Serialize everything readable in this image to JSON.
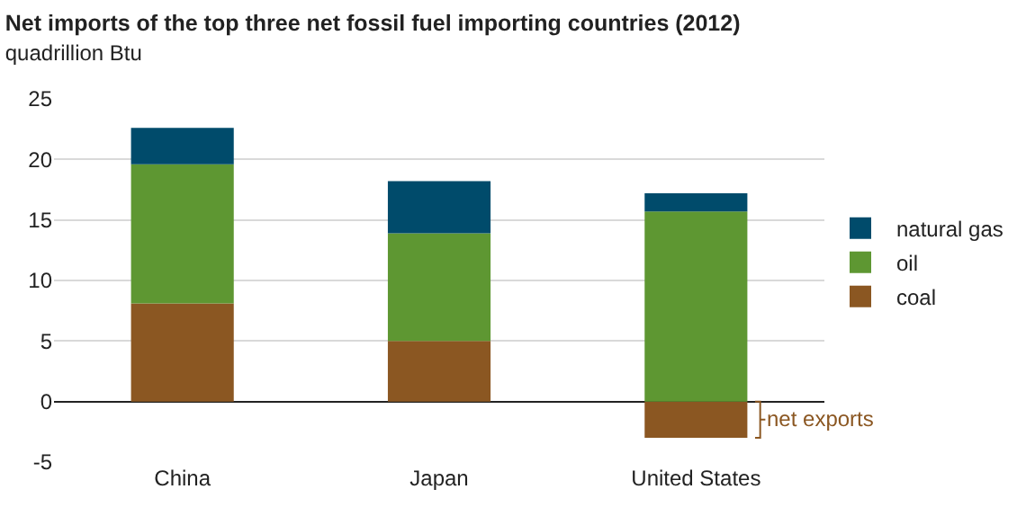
{
  "chart_data": {
    "type": "bar",
    "title": "Net imports of the top three net fossil fuel importing countries (2012)",
    "subtitle": "quadrillion Btu",
    "categories": [
      "China",
      "Japan",
      "United States"
    ],
    "series": [
      {
        "name": "coal",
        "color": "#8b5722",
        "values": [
          8.1,
          5.0,
          -3.0
        ]
      },
      {
        "name": "oil",
        "color": "#5e9732",
        "values": [
          11.5,
          8.9,
          15.7
        ]
      },
      {
        "name": "natural gas",
        "color": "#004b6b",
        "values": [
          3.0,
          4.3,
          1.5
        ]
      }
    ],
    "stacked": true,
    "ylim": [
      -5,
      25
    ],
    "yticks": [
      -5,
      0,
      5,
      10,
      15,
      20,
      25
    ],
    "grid": "y",
    "legend": "right",
    "annotations": [
      "net exports"
    ]
  }
}
